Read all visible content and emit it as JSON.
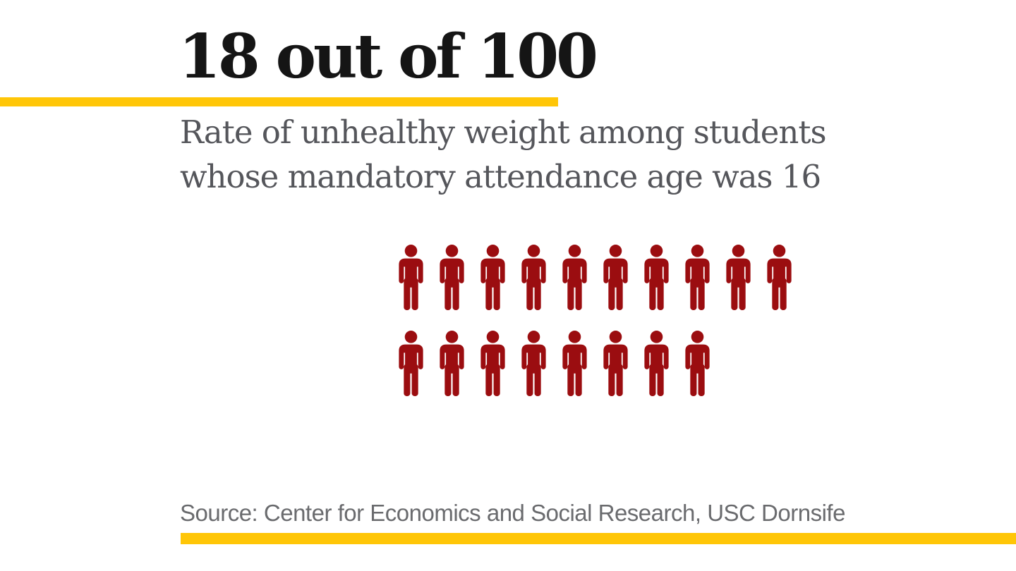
{
  "headline": {
    "title": "18 out of 100",
    "subtitle_line1": "Rate of unhealthy weight among students",
    "subtitle_line2": "whose mandatory attendance age was 16"
  },
  "source": {
    "label": "Source: Center for Economics and Social Research, USC Dornsife"
  },
  "colors": {
    "accent_gold": "#FFC607",
    "icon_red": "#9B0D10",
    "title_black": "#151515",
    "subtitle_gray": "#55565B",
    "source_gray": "#6A6B6E",
    "background": "#FFFFFF"
  },
  "chart_data": {
    "type": "pictogram",
    "title": "18 out of 100",
    "subtitle": "Rate of unhealthy weight among students whose mandatory attendance age was 16",
    "value": 18,
    "total": 100,
    "icon": "person-icon",
    "icon_color": "#9B0D10",
    "rows": [
      10,
      8
    ],
    "icons_per_row_max": 10,
    "legend_position": "none",
    "grid": false,
    "source": "Source: Center for Economics and Social Research, USC Dornsife"
  }
}
